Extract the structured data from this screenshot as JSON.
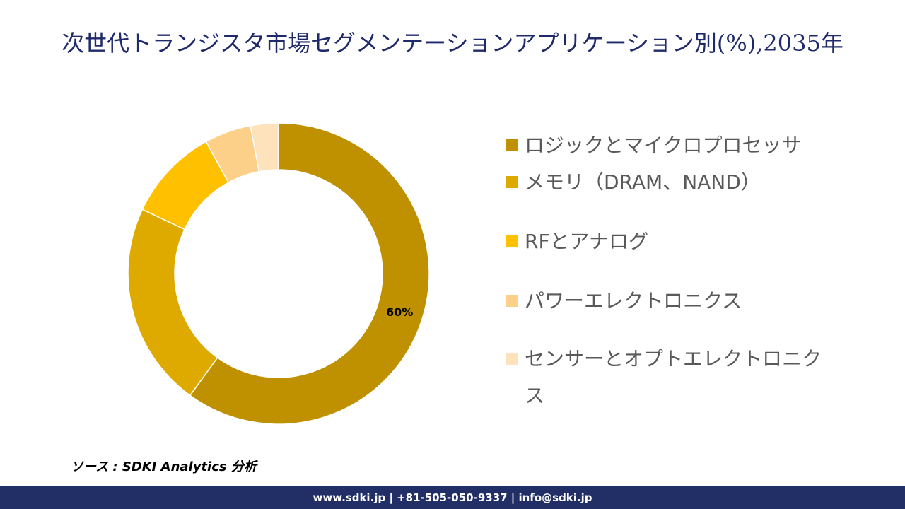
{
  "chart_data": {
    "type": "donut",
    "title": "次世代トランジスタ市場セグメンテーションアプリケーション別(%),2035年",
    "categories": [
      "ロジックとマイクロプロセッサ",
      "メモリ（DRAM、NAND）",
      "RFとアナログ",
      "パワーエレクトロニクス",
      "センサーとオプトエレクトロニクス"
    ],
    "values": [
      60,
      22,
      10,
      5,
      3
    ],
    "value_labels": [
      "60%",
      null,
      null,
      null,
      null
    ],
    "colors": [
      "#bf9000",
      "#dfaa00",
      "#ffc000",
      "#fdd08a",
      "#fde2bb"
    ]
  },
  "source": "ソース : SDKI Analytics 分析",
  "footer": "www.sdki.jp | +81-505-050-9337 | info@sdki.jp"
}
